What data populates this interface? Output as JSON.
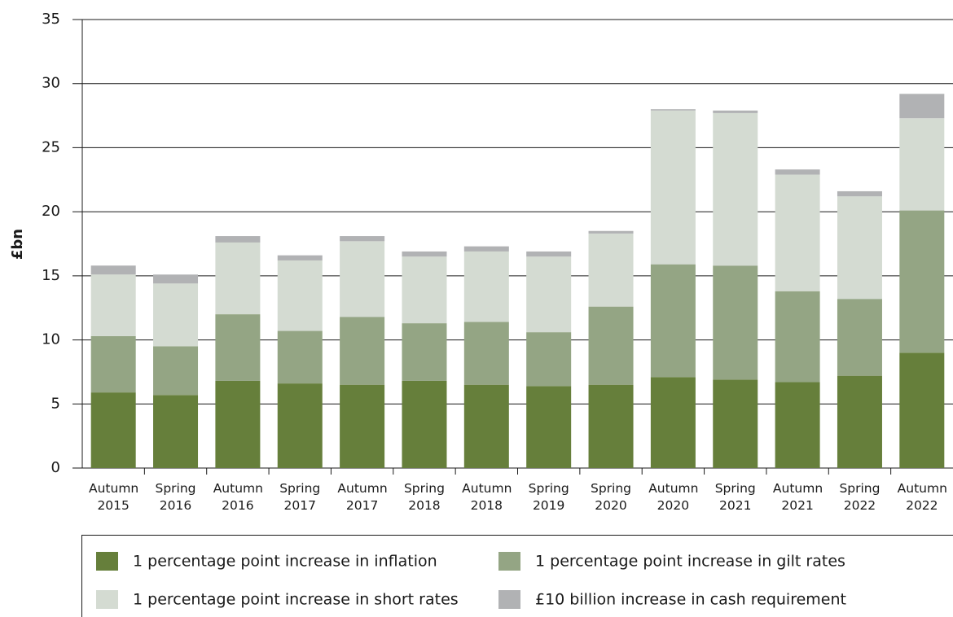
{
  "chart_data": {
    "type": "stacked_bar",
    "y_label": "£bn",
    "categories": [
      "Autumn 2015",
      "Spring 2016",
      "Autumn 2016",
      "Spring 2017",
      "Autumn 2017",
      "Spring 2018",
      "Autumn 2018",
      "Spring 2019",
      "Spring 2020",
      "Autumn 2020",
      "Spring 2021",
      "Autumn 2021",
      "Spring 2022",
      "Autumn 2022"
    ],
    "series": [
      {
        "name": "1 percentage point increase in inflation",
        "color": "#667f3b",
        "values": [
          5.9,
          5.7,
          6.8,
          6.6,
          6.5,
          6.8,
          6.5,
          6.4,
          6.5,
          7.1,
          6.9,
          6.7,
          7.2,
          9.0
        ]
      },
      {
        "name": "1 percentage point increase in gilt rates",
        "color": "#94a584",
        "values": [
          4.4,
          3.8,
          5.2,
          4.1,
          5.3,
          4.5,
          4.9,
          4.2,
          6.1,
          8.8,
          8.9,
          7.1,
          6.0,
          11.1
        ]
      },
      {
        "name": "1 percentage point increase in short rates",
        "color": "#d4dbd2",
        "values": [
          4.8,
          4.9,
          5.6,
          5.5,
          5.9,
          5.2,
          5.5,
          5.9,
          5.7,
          12.0,
          11.9,
          9.1,
          8.0,
          7.2
        ]
      },
      {
        "name": "£10 billion increase in cash requirement",
        "color": "#b1b2b4",
        "values": [
          0.7,
          0.7,
          0.5,
          0.4,
          0.4,
          0.4,
          0.4,
          0.4,
          0.2,
          0.1,
          0.2,
          0.4,
          0.4,
          1.9
        ]
      }
    ],
    "ylim": [
      0,
      35
    ],
    "yticks": [
      0,
      5,
      10,
      15,
      20,
      25,
      30,
      35
    ],
    "grid": true
  }
}
